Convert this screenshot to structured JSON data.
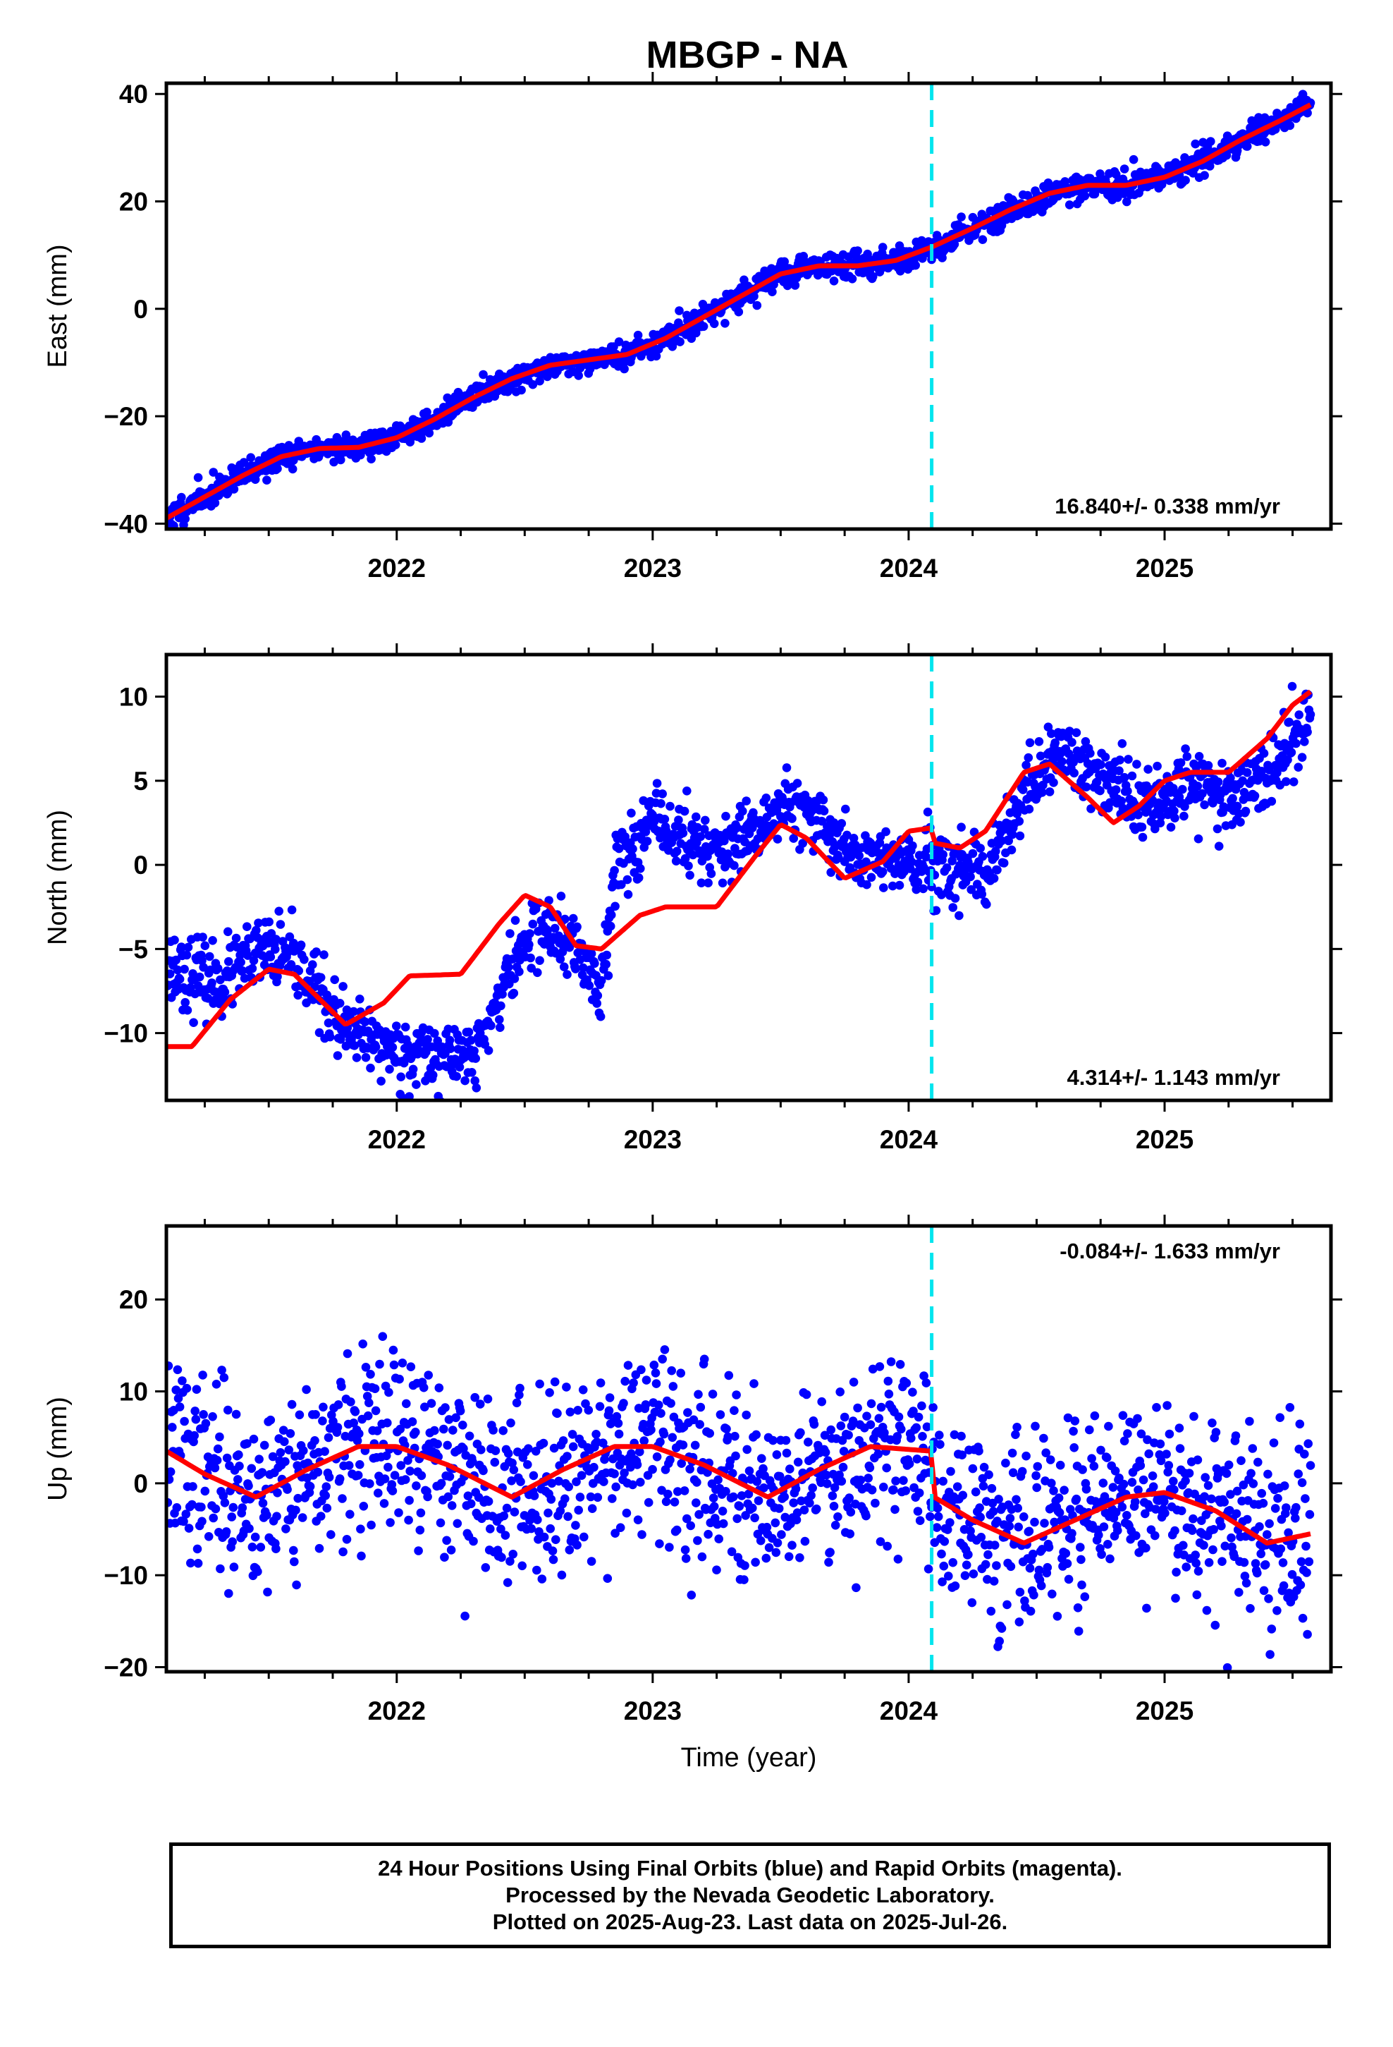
{
  "title": "MBGP - NA",
  "chart_data": [
    {
      "type": "scatter",
      "name": "east",
      "ylabel": "East (mm)",
      "xlabel": "",
      "xlim": [
        2021.1,
        2025.65
      ],
      "ylim": [
        -41,
        42
      ],
      "yticks": [
        -40,
        -20,
        0,
        20,
        40
      ],
      "xticks": [
        2022,
        2023,
        2024,
        2025
      ],
      "grid": false,
      "rate_label": "16.840+/- 0.338 mm/yr",
      "rate_position": "bottom-right",
      "vertical_line_x": 2024.09,
      "model_x": [
        2021.1,
        2021.25,
        2021.4,
        2021.55,
        2021.7,
        2021.85,
        2022.0,
        2022.15,
        2022.3,
        2022.45,
        2022.6,
        2022.75,
        2022.9,
        2023.05,
        2023.2,
        2023.35,
        2023.5,
        2023.65,
        2023.8,
        2023.95,
        2024.09,
        2024.25,
        2024.4,
        2024.55,
        2024.7,
        2024.85,
        2025.0,
        2025.15,
        2025.3,
        2025.45,
        2025.57
      ],
      "model_y": [
        -39,
        -35,
        -31,
        -27.5,
        -26,
        -25.8,
        -24,
        -20.5,
        -16.5,
        -13,
        -10.5,
        -9.5,
        -8.5,
        -5.5,
        -1.5,
        2.5,
        6.5,
        8,
        8,
        9,
        11.5,
        15,
        18.5,
        21.5,
        23,
        23,
        24.5,
        27.5,
        31.5,
        35,
        38
      ],
      "scatter_seed": 11,
      "scatter_noise": 1.2,
      "scatter_count": 1500
    },
    {
      "type": "scatter",
      "name": "north",
      "ylabel": "North (mm)",
      "xlabel": "",
      "xlim": [
        2021.1,
        2025.65
      ],
      "ylim": [
        -14,
        12.5
      ],
      "yticks": [
        -10,
        -5,
        0,
        5,
        10
      ],
      "xticks": [
        2022,
        2023,
        2024,
        2025
      ],
      "grid": false,
      "rate_label": "4.314+/- 1.143 mm/yr",
      "rate_position": "bottom-right",
      "vertical_line_x": 2024.09,
      "model_x": [
        2021.1,
        2021.2,
        2021.35,
        2021.5,
        2021.6,
        2021.8,
        2021.95,
        2022.05,
        2022.25,
        2022.4,
        2022.5,
        2022.6,
        2022.7,
        2022.8,
        2022.95,
        2023.05,
        2023.25,
        2023.4,
        2023.5,
        2023.6,
        2023.75,
        2023.9,
        2024.0,
        2024.09,
        2024.1,
        2024.2,
        2024.3,
        2024.45,
        2024.55,
        2024.7,
        2024.8,
        2024.9,
        2025.0,
        2025.1,
        2025.25,
        2025.4,
        2025.5,
        2025.57
      ],
      "model_y": [
        -10.8,
        -10.8,
        -8,
        -6.2,
        -6.5,
        -9.5,
        -8.2,
        -6.6,
        -6.5,
        -3.5,
        -1.8,
        -2.5,
        -4.8,
        -5,
        -3,
        -2.5,
        -2.5,
        0.5,
        2.4,
        1.6,
        -0.8,
        0.2,
        2,
        2.2,
        1.3,
        1,
        2,
        5.5,
        6,
        4,
        2.5,
        3.5,
        5,
        5.5,
        5.5,
        7.5,
        9.5,
        10.3
      ],
      "scatter_x": [
        2021.1,
        2021.3,
        2021.5,
        2021.65,
        2021.8,
        2022.0,
        2022.2,
        2022.3,
        2022.45,
        2022.55,
        2022.7,
        2022.8,
        2022.85,
        2023.0,
        2023.2,
        2023.35,
        2023.5,
        2023.65,
        2023.8,
        2024.0,
        2024.2,
        2024.3,
        2024.45,
        2024.6,
        2024.75,
        2024.9,
        2025.1,
        2025.3,
        2025.45,
        2025.57
      ],
      "scatter_y": [
        -6,
        -7,
        -5,
        -6.5,
        -10,
        -11,
        -11.5,
        -11.5,
        -6,
        -3.5,
        -5,
        -7.5,
        0,
        2.5,
        1,
        1,
        3.5,
        2.5,
        0.5,
        0,
        -0.5,
        -1,
        4,
        7,
        5,
        3.5,
        5,
        4,
        6,
        9
      ],
      "scatter_seed": 23,
      "scatter_noise": 1.05,
      "scatter_count": 1500
    },
    {
      "type": "scatter",
      "name": "up",
      "ylabel": "Up (mm)",
      "xlabel": "Time (year)",
      "xlim": [
        2021.1,
        2025.65
      ],
      "ylim": [
        -20.5,
        28
      ],
      "yticks": [
        -20,
        -10,
        0,
        10,
        20
      ],
      "xticks": [
        2022,
        2023,
        2024,
        2025
      ],
      "grid": false,
      "rate_label": "-0.084+/- 1.633 mm/yr",
      "rate_position": "top-right",
      "vertical_line_x": 2024.09,
      "model_x": [
        2021.1,
        2021.25,
        2021.45,
        2021.65,
        2021.85,
        2022.0,
        2022.2,
        2022.45,
        2022.65,
        2022.85,
        2023.0,
        2023.2,
        2023.45,
        2023.65,
        2023.85,
        2024.09,
        2024.1,
        2024.25,
        2024.45,
        2024.65,
        2024.85,
        2025.0,
        2025.2,
        2025.4,
        2025.57
      ],
      "model_y": [
        3.5,
        1,
        -1.5,
        1.5,
        4,
        4,
        2,
        -1.5,
        1.5,
        4,
        4,
        2,
        -1.5,
        1.5,
        4,
        3.5,
        -1.5,
        -4,
        -6.5,
        -4,
        -1.5,
        -1,
        -3,
        -6.5,
        -5.5
      ],
      "scatter_seed": 37,
      "scatter_noise": 5.0,
      "scatter_count": 1500
    }
  ],
  "footer": {
    "line1": "24 Hour Positions Using Final Orbits (blue) and Rapid Orbits (magenta).",
    "line2": "Processed by the Nevada Geodetic Laboratory.",
    "line3": "Plotted on 2025-Aug-23. Last data on 2025-Jul-26."
  },
  "colors": {
    "points": "#0000ff",
    "model": "#ff0000",
    "event_line": "#00e5ee",
    "frame": "#000000"
  }
}
